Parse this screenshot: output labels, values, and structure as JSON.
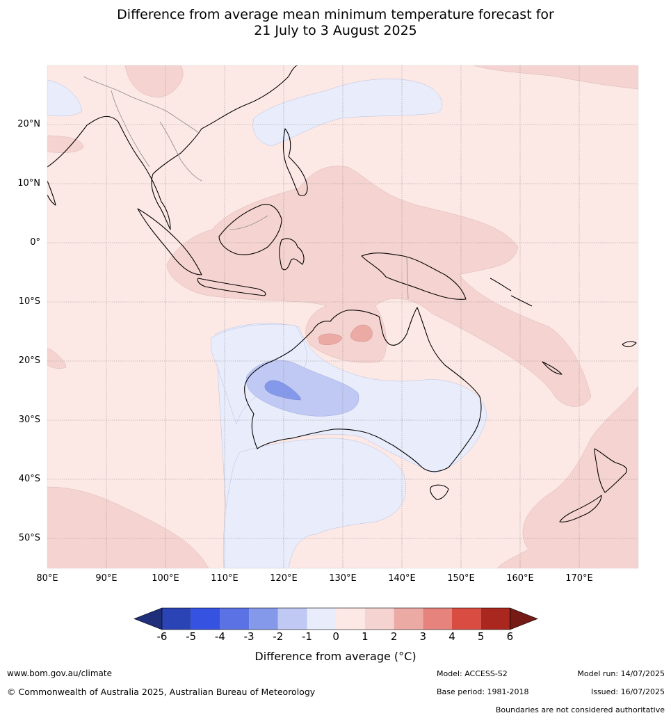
{
  "title_line1": "Difference from average mean minimum temperature forecast for",
  "title_line2": "21 July to 3 August 2025",
  "map": {
    "lat_labels": [
      "20°N",
      "10°N",
      "0°",
      "10°S",
      "20°S",
      "30°S",
      "40°S",
      "50°S"
    ],
    "lon_labels": [
      "80°E",
      "90°E",
      "100°E",
      "110°E",
      "120°E",
      "130°E",
      "140°E",
      "150°E",
      "160°E",
      "170°E"
    ]
  },
  "legend": {
    "ticks": [
      "-6",
      "-5",
      "-4",
      "-3",
      "-2",
      "-1",
      "0",
      "1",
      "2",
      "3",
      "4",
      "5",
      "6"
    ],
    "colors": [
      "#1f2f7a",
      "#2a44b5",
      "#3552e0",
      "#5a72e4",
      "#8599ea",
      "#c0c8f4",
      "#e8ecfb",
      "#fce9e6",
      "#f5d3d0",
      "#ecaaa4",
      "#e5837c",
      "#d94c42",
      "#a9271f",
      "#751a14"
    ],
    "label": "Difference from average (°C)"
  },
  "footer": {
    "website": "www.bom.gov.au/climate",
    "copyright": "© Commonwealth of Australia 2025, Australian Bureau of Meteorology",
    "model": "Model: ACCESS-S2",
    "base_period": "Base period: 1981-2018",
    "model_run": "Model run: 14/07/2025",
    "issued": "Issued: 16/07/2025",
    "disclaimer": "Boundaries are not considered authoritative"
  }
}
